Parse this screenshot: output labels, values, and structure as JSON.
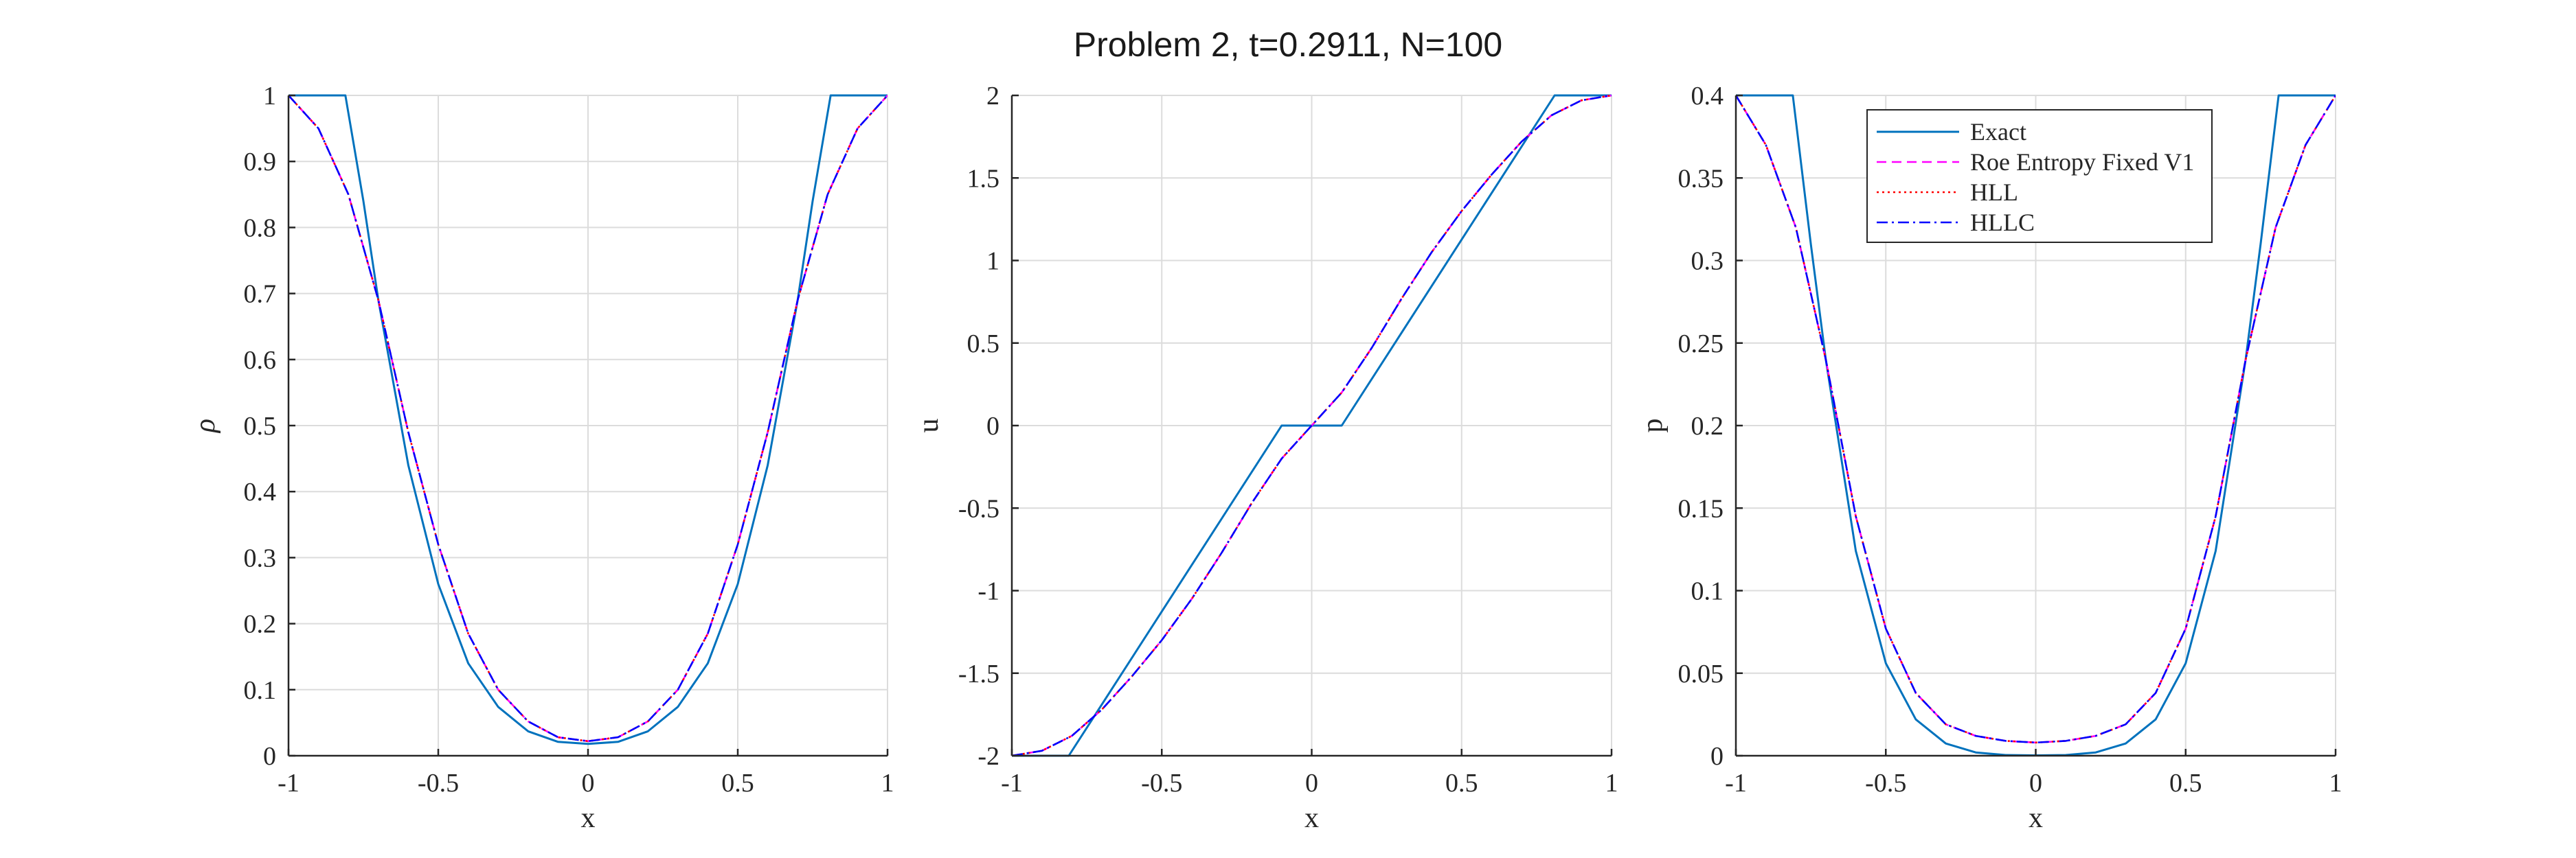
{
  "colors": {
    "exact": "#0072BD",
    "roe": "#FF00FF",
    "hll": "#FF0000",
    "hllc": "#0000FF",
    "grid": "#DCDCDC",
    "axis": "#262626"
  },
  "chart_data": {
    "type": "line",
    "title": "Problem 2, t=0.2911, N=100",
    "legend": {
      "placement": "top-right of third panel",
      "entries": [
        "Exact",
        "Roe Entropy Fixed V1",
        "HLL",
        "HLLC"
      ]
    },
    "panels": [
      {
        "xlabel": "x",
        "ylabel": "ρ",
        "xlim": [
          -1,
          1
        ],
        "ylim": [
          0,
          1
        ],
        "xticks": [
          "-1",
          "-0.5",
          "0",
          "0.5",
          "1"
        ],
        "yticks": [
          "0",
          "0.1",
          "0.2",
          "0.3",
          "0.4",
          "0.5",
          "0.6",
          "0.7",
          "0.8",
          "0.9",
          "1"
        ],
        "grid": true,
        "series": [
          {
            "name": "Exact",
            "x": [
              -1,
              -0.81,
              -0.75,
              -0.7,
              -0.6,
              -0.5,
              -0.4,
              -0.3,
              -0.2,
              -0.1,
              0,
              0.1,
              0.2,
              0.3,
              0.4,
              0.5,
              0.6,
              0.7,
              0.75,
              0.81,
              1
            ],
            "y": [
              1,
              1,
              0.84,
              0.69,
              0.44,
              0.26,
              0.14,
              0.074,
              0.037,
              0.021,
              0.018,
              0.021,
              0.037,
              0.074,
              0.14,
              0.26,
              0.44,
              0.69,
              0.84,
              1,
              1
            ]
          },
          {
            "name": "Roe Entropy Fixed V1",
            "x": [
              -1,
              -0.9,
              -0.8,
              -0.7,
              -0.6,
              -0.5,
              -0.4,
              -0.3,
              -0.2,
              -0.1,
              0,
              0.1,
              0.2,
              0.3,
              0.4,
              0.5,
              0.6,
              0.7,
              0.8,
              0.9,
              1
            ],
            "y": [
              1,
              0.95,
              0.85,
              0.69,
              0.49,
              0.32,
              0.185,
              0.1,
              0.052,
              0.028,
              0.022,
              0.028,
              0.052,
              0.1,
              0.185,
              0.32,
              0.49,
              0.69,
              0.85,
              0.95,
              1
            ]
          },
          {
            "name": "HLL",
            "x": [
              -1,
              -0.9,
              -0.8,
              -0.7,
              -0.6,
              -0.5,
              -0.4,
              -0.3,
              -0.2,
              -0.1,
              0,
              0.1,
              0.2,
              0.3,
              0.4,
              0.5,
              0.6,
              0.7,
              0.8,
              0.9,
              1
            ],
            "y": [
              1,
              0.95,
              0.85,
              0.69,
              0.49,
              0.32,
              0.185,
              0.1,
              0.052,
              0.028,
              0.022,
              0.028,
              0.052,
              0.1,
              0.185,
              0.32,
              0.49,
              0.69,
              0.85,
              0.95,
              1
            ]
          },
          {
            "name": "HLLC",
            "x": [
              -1,
              -0.9,
              -0.8,
              -0.7,
              -0.6,
              -0.5,
              -0.4,
              -0.3,
              -0.2,
              -0.1,
              0,
              0.1,
              0.2,
              0.3,
              0.4,
              0.5,
              0.6,
              0.7,
              0.8,
              0.9,
              1
            ],
            "y": [
              1,
              0.95,
              0.85,
              0.69,
              0.49,
              0.32,
              0.185,
              0.1,
              0.052,
              0.028,
              0.022,
              0.028,
              0.052,
              0.1,
              0.185,
              0.32,
              0.49,
              0.69,
              0.85,
              0.95,
              1
            ]
          }
        ]
      },
      {
        "xlabel": "x",
        "ylabel": "u",
        "xlim": [
          -1,
          1
        ],
        "ylim": [
          -2,
          2
        ],
        "xticks": [
          "-1",
          "-0.5",
          "0",
          "0.5",
          "1"
        ],
        "yticks": [
          "-2",
          "-1.5",
          "-1",
          "-0.5",
          "0",
          "0.5",
          "1",
          "1.5",
          "2"
        ],
        "grid": true,
        "series": [
          {
            "name": "Exact",
            "x": [
              -1,
              -0.81,
              -0.1,
              0.1,
              0.81,
              1
            ],
            "y": [
              -2,
              -2,
              0,
              0,
              2,
              2
            ]
          },
          {
            "name": "Roe Entropy Fixed V1",
            "x": [
              -1,
              -0.9,
              -0.8,
              -0.7,
              -0.6,
              -0.5,
              -0.4,
              -0.3,
              -0.2,
              -0.1,
              0,
              0.1,
              0.2,
              0.3,
              0.4,
              0.5,
              0.6,
              0.7,
              0.8,
              0.9,
              1
            ],
            "y": [
              -2,
              -1.97,
              -1.88,
              -1.72,
              -1.52,
              -1.3,
              -1.05,
              -0.77,
              -0.47,
              -0.2,
              0,
              0.2,
              0.47,
              0.77,
              1.05,
              1.3,
              1.52,
              1.72,
              1.88,
              1.97,
              2
            ]
          },
          {
            "name": "HLL",
            "x": [
              -1,
              -0.9,
              -0.8,
              -0.7,
              -0.6,
              -0.5,
              -0.4,
              -0.3,
              -0.2,
              -0.1,
              0,
              0.1,
              0.2,
              0.3,
              0.4,
              0.5,
              0.6,
              0.7,
              0.8,
              0.9,
              1
            ],
            "y": [
              -2,
              -1.97,
              -1.88,
              -1.72,
              -1.52,
              -1.3,
              -1.05,
              -0.77,
              -0.47,
              -0.2,
              0,
              0.2,
              0.47,
              0.77,
              1.05,
              1.3,
              1.52,
              1.72,
              1.88,
              1.97,
              2
            ]
          },
          {
            "name": "HLLC",
            "x": [
              -1,
              -0.9,
              -0.8,
              -0.7,
              -0.6,
              -0.5,
              -0.4,
              -0.3,
              -0.2,
              -0.1,
              0,
              0.1,
              0.2,
              0.3,
              0.4,
              0.5,
              0.6,
              0.7,
              0.8,
              0.9,
              1
            ],
            "y": [
              -2,
              -1.97,
              -1.88,
              -1.72,
              -1.52,
              -1.3,
              -1.05,
              -0.77,
              -0.47,
              -0.2,
              0,
              0.2,
              0.47,
              0.77,
              1.05,
              1.3,
              1.52,
              1.72,
              1.88,
              1.97,
              2
            ]
          }
        ]
      },
      {
        "xlabel": "x",
        "ylabel": "p",
        "xlim": [
          -1,
          1
        ],
        "ylim": [
          0,
          0.4
        ],
        "xticks": [
          "-1",
          "-0.5",
          "0",
          "0.5",
          "1"
        ],
        "yticks": [
          "0",
          "0.05",
          "0.1",
          "0.15",
          "0.2",
          "0.25",
          "0.3",
          "0.35",
          "0.4"
        ],
        "grid": true,
        "series": [
          {
            "name": "Exact",
            "x": [
              -1,
              -0.81,
              -0.75,
              -0.7,
              -0.6,
              -0.5,
              -0.4,
              -0.3,
              -0.2,
              -0.1,
              0,
              0.1,
              0.2,
              0.3,
              0.4,
              0.5,
              0.6,
              0.7,
              0.75,
              0.81,
              1
            ],
            "y": [
              0.4,
              0.4,
              0.31,
              0.24,
              0.124,
              0.056,
              0.022,
              0.0074,
              0.002,
              0.0004,
              0.0002,
              0.0004,
              0.002,
              0.0074,
              0.022,
              0.056,
              0.124,
              0.24,
              0.31,
              0.4,
              0.4
            ]
          },
          {
            "name": "Roe Entropy Fixed V1",
            "x": [
              -1,
              -0.9,
              -0.8,
              -0.7,
              -0.6,
              -0.5,
              -0.4,
              -0.3,
              -0.2,
              -0.1,
              0,
              0.1,
              0.2,
              0.3,
              0.4,
              0.5,
              0.6,
              0.7,
              0.8,
              0.9,
              1
            ],
            "y": [
              0.4,
              0.37,
              0.32,
              0.24,
              0.145,
              0.077,
              0.038,
              0.019,
              0.012,
              0.009,
              0.008,
              0.009,
              0.012,
              0.019,
              0.038,
              0.077,
              0.145,
              0.24,
              0.32,
              0.37,
              0.4
            ]
          },
          {
            "name": "HLL",
            "x": [
              -1,
              -0.9,
              -0.8,
              -0.7,
              -0.6,
              -0.5,
              -0.4,
              -0.3,
              -0.2,
              -0.1,
              0,
              0.1,
              0.2,
              0.3,
              0.4,
              0.5,
              0.6,
              0.7,
              0.8,
              0.9,
              1
            ],
            "y": [
              0.4,
              0.37,
              0.32,
              0.24,
              0.145,
              0.077,
              0.038,
              0.019,
              0.012,
              0.009,
              0.008,
              0.009,
              0.012,
              0.019,
              0.038,
              0.077,
              0.145,
              0.24,
              0.32,
              0.37,
              0.4
            ]
          },
          {
            "name": "HLLC",
            "x": [
              -1,
              -0.9,
              -0.8,
              -0.7,
              -0.6,
              -0.5,
              -0.4,
              -0.3,
              -0.2,
              -0.1,
              0,
              0.1,
              0.2,
              0.3,
              0.4,
              0.5,
              0.6,
              0.7,
              0.8,
              0.9,
              1
            ],
            "y": [
              0.4,
              0.37,
              0.32,
              0.24,
              0.145,
              0.077,
              0.038,
              0.019,
              0.012,
              0.009,
              0.008,
              0.009,
              0.012,
              0.019,
              0.038,
              0.077,
              0.145,
              0.24,
              0.32,
              0.37,
              0.4
            ]
          }
        ]
      }
    ]
  }
}
